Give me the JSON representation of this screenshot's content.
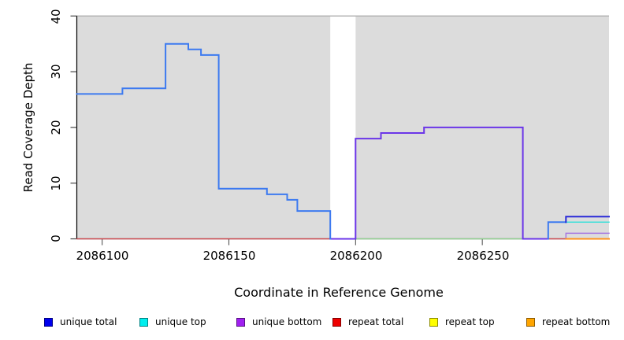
{
  "figure": {
    "y_axis_title": "Read Coverage Depth",
    "x_axis_title": "Coordinate in Reference Genome"
  },
  "axes": {
    "x": {
      "ticks": [
        2086100,
        2086150,
        2086200,
        2086250
      ],
      "tick_labels": [
        "2086100",
        "2086150",
        "2086200",
        "2086250"
      ],
      "range": [
        2086090,
        2086300
      ]
    },
    "y": {
      "ticks": [
        0,
        10,
        20,
        30,
        40
      ],
      "tick_labels": [
        "0",
        "10",
        "20",
        "30",
        "40"
      ],
      "range": [
        0,
        40
      ]
    }
  },
  "legend": {
    "items": [
      {
        "label": "unique total",
        "color": "#0000ee"
      },
      {
        "label": "unique top",
        "color": "#00eeee"
      },
      {
        "label": "unique bottom",
        "color": "#a020f0"
      },
      {
        "label": "repeat total",
        "color": "#ee0000"
      },
      {
        "label": "repeat top",
        "color": "#ffff00"
      },
      {
        "label": "repeat bottom",
        "color": "#ffa500"
      }
    ]
  },
  "chart_data": {
    "type": "line",
    "title": "",
    "xlabel": "Coordinate in Reference Genome",
    "ylabel": "Read Coverage Depth",
    "xlim": [
      2086090,
      2086300
    ],
    "ylim": [
      0,
      40
    ],
    "grid": false,
    "legend_position": "bottom",
    "plot_background_regions": [
      {
        "x0": 2086090,
        "x1": 2086190,
        "color": "#dcdcdc"
      },
      {
        "x0": 2086200,
        "x1": 2086300,
        "color": "#dcdcdc"
      }
    ],
    "offscale_marker": {
      "y": 40,
      "x0": 2086090,
      "x1": 2086300,
      "color": "#adadad"
    },
    "series": [
      {
        "name": "repeat total (left region, depth 0)",
        "color": "#d84048",
        "width": 1.3,
        "points": [
          [
            2086090,
            0
          ],
          [
            2086190,
            0
          ]
        ]
      },
      {
        "name": "zero-depth overlap line (right region)",
        "color": "#8fd98f",
        "width": 1.3,
        "points": [
          [
            2086200,
            0
          ],
          [
            2086266,
            0
          ]
        ]
      },
      {
        "name": "repeat total (right region, depth 0)",
        "color": "#d84048",
        "width": 1.3,
        "points": [
          [
            2086276,
            0
          ],
          [
            2086283,
            0
          ]
        ]
      },
      {
        "name": "unique bottom (main step profile)",
        "color": "#6b35e8",
        "width": 2,
        "points": [
          [
            2086190,
            0
          ],
          [
            2086200,
            0
          ],
          [
            2086200,
            18
          ],
          [
            2086210,
            18
          ],
          [
            2086210,
            19
          ],
          [
            2086227,
            19
          ],
          [
            2086227,
            20
          ],
          [
            2086266,
            20
          ],
          [
            2086266,
            0
          ],
          [
            2086276,
            0
          ]
        ]
      },
      {
        "name": "unique total (left step profile)",
        "color": "#3d7af0",
        "width": 2,
        "points": [
          [
            2086090,
            26
          ],
          [
            2086108,
            26
          ],
          [
            2086108,
            27
          ],
          [
            2086125,
            27
          ],
          [
            2086125,
            35
          ],
          [
            2086134,
            35
          ],
          [
            2086134,
            34
          ],
          [
            2086139,
            34
          ],
          [
            2086139,
            33
          ],
          [
            2086146,
            33
          ],
          [
            2086146,
            9
          ],
          [
            2086165,
            9
          ],
          [
            2086165,
            8
          ],
          [
            2086173,
            8
          ],
          [
            2086173,
            7
          ],
          [
            2086177,
            7
          ],
          [
            2086177,
            5
          ],
          [
            2086190,
            5
          ],
          [
            2086190,
            0
          ]
        ]
      },
      {
        "name": "unique total (right rise to 3)",
        "color": "#3d7af0",
        "width": 2,
        "points": [
          [
            2086276,
            0
          ],
          [
            2086276,
            3
          ],
          [
            2086283,
            3
          ]
        ]
      },
      {
        "name": "unique top (right, depth 3)",
        "color": "#40e0da",
        "width": 1.5,
        "points": [
          [
            2086283,
            3
          ],
          [
            2086300,
            3
          ]
        ]
      },
      {
        "name": "unique total (right, depth 4)",
        "color": "#2a2ad8",
        "width": 2,
        "points": [
          [
            2086283,
            3
          ],
          [
            2086283,
            4
          ],
          [
            2086300,
            4
          ]
        ]
      },
      {
        "name": "unique bottom (right, depth 1)",
        "color": "#a678e0",
        "width": 1.5,
        "points": [
          [
            2086283,
            0
          ],
          [
            2086283,
            1
          ],
          [
            2086300,
            1
          ]
        ]
      },
      {
        "name": "repeat bottom (right, depth 0)",
        "color": "#ff9018",
        "width": 2,
        "points": [
          [
            2086283,
            0
          ],
          [
            2086300,
            0
          ]
        ]
      }
    ]
  }
}
